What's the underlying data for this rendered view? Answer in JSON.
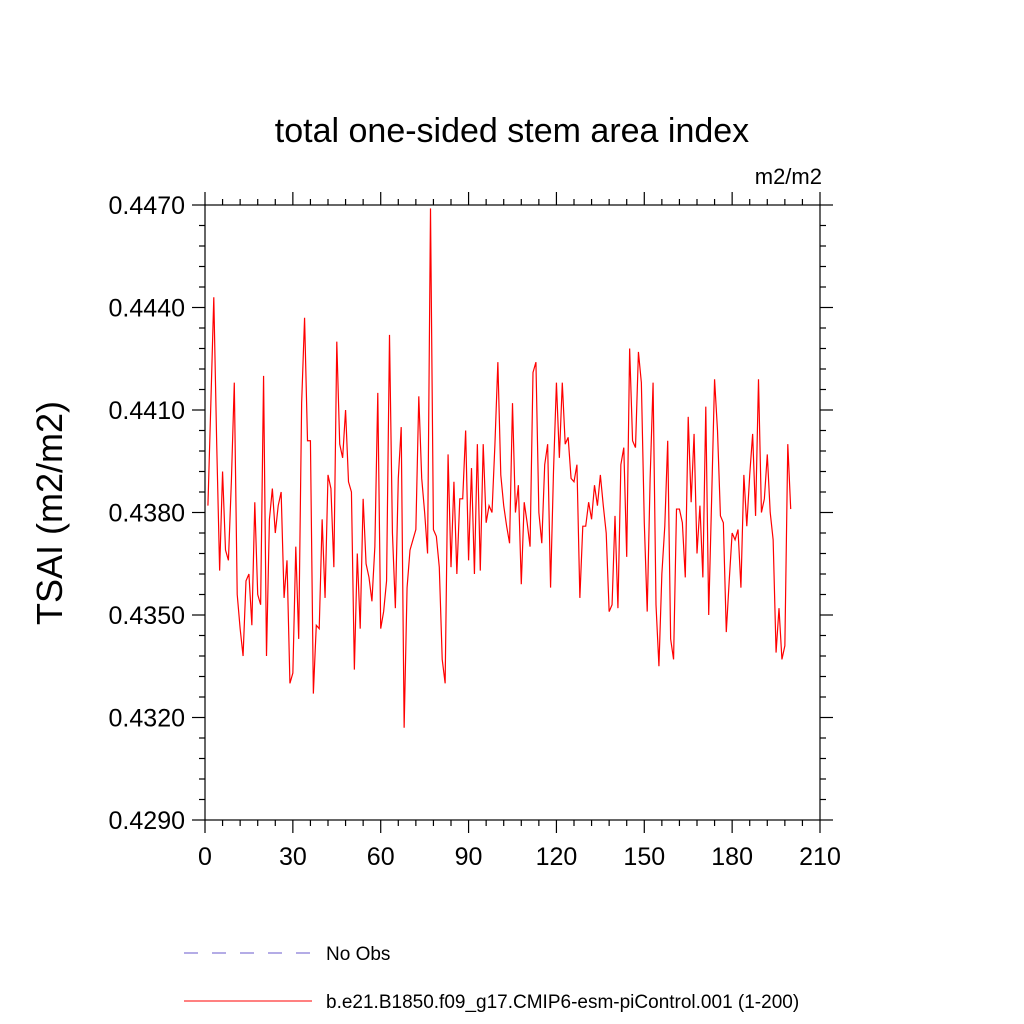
{
  "chart_data": {
    "type": "line",
    "title": "total one-sided stem area index",
    "units": "m2/m2",
    "ylabel": "TSAI  (m2/m2)",
    "xlabel": "",
    "xlim": [
      0,
      210
    ],
    "ylim": [
      0.429,
      0.447
    ],
    "x_ticks": [
      0,
      30,
      60,
      90,
      120,
      150,
      180,
      210
    ],
    "x_tick_labels": [
      "0",
      "30",
      "60",
      "90",
      "120",
      "150",
      "180",
      "210"
    ],
    "y_ticks": [
      0.429,
      0.432,
      0.435,
      0.438,
      0.441,
      0.444,
      0.447
    ],
    "y_tick_labels": [
      "0.4290",
      "0.4320",
      "0.4350",
      "0.4380",
      "0.4410",
      "0.4440",
      "0.4470"
    ],
    "grid": false,
    "legend": {
      "placement": "bottom",
      "entries": [
        {
          "label": "No Obs",
          "color": "#6a5acd",
          "style": "dashed"
        },
        {
          "label": "b.e21.B1850.f09_g17.CMIP6-esm-piControl.001 (1-200)",
          "color": "#ff0000",
          "style": "solid"
        }
      ]
    },
    "series": [
      {
        "name": "b.e21.B1850.f09_g17.CMIP6-esm-piControl.001 (1-200)",
        "color": "#ff0000",
        "x_start": 1,
        "x_step": 1,
        "values": [
          0.4382,
          0.4412,
          0.4443,
          0.44,
          0.4363,
          0.4392,
          0.4369,
          0.4366,
          0.4389,
          0.4418,
          0.4356,
          0.4346,
          0.4338,
          0.436,
          0.4362,
          0.4347,
          0.4383,
          0.4356,
          0.4353,
          0.442,
          0.4338,
          0.4378,
          0.4387,
          0.4374,
          0.4382,
          0.4386,
          0.4355,
          0.4366,
          0.433,
          0.4333,
          0.437,
          0.4343,
          0.4412,
          0.4437,
          0.4401,
          0.4401,
          0.4327,
          0.4347,
          0.4346,
          0.4378,
          0.4355,
          0.4391,
          0.4387,
          0.4364,
          0.443,
          0.44,
          0.4396,
          0.441,
          0.4389,
          0.4386,
          0.4334,
          0.4368,
          0.4346,
          0.4384,
          0.4365,
          0.4361,
          0.4354,
          0.437,
          0.4415,
          0.4346,
          0.4351,
          0.436,
          0.4432,
          0.4374,
          0.4352,
          0.439,
          0.4405,
          0.4317,
          0.4358,
          0.4369,
          0.4372,
          0.4375,
          0.4414,
          0.439,
          0.438,
          0.4368,
          0.4469,
          0.4375,
          0.4373,
          0.4364,
          0.4337,
          0.433,
          0.4397,
          0.4364,
          0.4389,
          0.4362,
          0.4384,
          0.4384,
          0.4404,
          0.4366,
          0.4393,
          0.4362,
          0.44,
          0.4363,
          0.44,
          0.4377,
          0.4382,
          0.438,
          0.44,
          0.4424,
          0.4391,
          0.4382,
          0.4376,
          0.4371,
          0.4412,
          0.438,
          0.4388,
          0.4359,
          0.4383,
          0.4377,
          0.437,
          0.4421,
          0.4424,
          0.438,
          0.4371,
          0.4394,
          0.44,
          0.4358,
          0.4392,
          0.4418,
          0.4396,
          0.4418,
          0.44,
          0.4402,
          0.439,
          0.4389,
          0.4394,
          0.4355,
          0.4376,
          0.4376,
          0.4383,
          0.4378,
          0.4388,
          0.4382,
          0.4391,
          0.4382,
          0.4374,
          0.4351,
          0.4353,
          0.4379,
          0.4352,
          0.4394,
          0.4399,
          0.4367,
          0.4428,
          0.4401,
          0.4399,
          0.4427,
          0.4418,
          0.4377,
          0.4351,
          0.439,
          0.4418,
          0.4353,
          0.4335,
          0.4362,
          0.4376,
          0.4401,
          0.4343,
          0.4337,
          0.4381,
          0.4381,
          0.4377,
          0.4361,
          0.4408,
          0.4383,
          0.4403,
          0.4368,
          0.4382,
          0.4361,
          0.4411,
          0.435,
          0.4384,
          0.4419,
          0.4404,
          0.4379,
          0.4377,
          0.4345,
          0.436,
          0.4374,
          0.4372,
          0.4375,
          0.4358,
          0.4391,
          0.4376,
          0.4391,
          0.4403,
          0.4379,
          0.4419,
          0.438,
          0.4384,
          0.4397,
          0.438,
          0.4372,
          0.4339,
          0.4352,
          0.4337,
          0.4341,
          0.44,
          0.4381
        ]
      }
    ]
  }
}
